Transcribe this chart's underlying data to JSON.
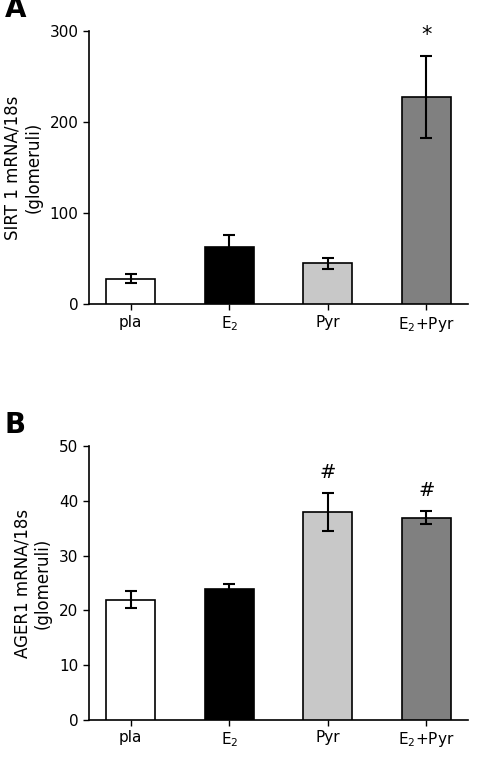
{
  "panel_A": {
    "label": "A",
    "categories": [
      "pla",
      "E$_2$",
      "Pyr",
      "E$_2$+Pyr"
    ],
    "values": [
      28,
      63,
      45,
      228
    ],
    "errors": [
      5,
      13,
      6,
      45
    ],
    "colors": [
      "#ffffff",
      "#000000",
      "#c8c8c8",
      "#808080"
    ],
    "edge_colors": [
      "#000000",
      "#000000",
      "#000000",
      "#000000"
    ],
    "ylabel": "SIRT 1 mRNA/18s\n(glomeruli)",
    "ylim": [
      0,
      300
    ],
    "yticks": [
      0,
      100,
      200,
      300
    ],
    "significance": [
      "",
      "",
      "",
      "*"
    ],
    "sig_fontsize": 15
  },
  "panel_B": {
    "label": "B",
    "categories": [
      "pla",
      "E$_2$",
      "Pyr",
      "E$_2$+Pyr"
    ],
    "values": [
      22,
      24,
      38,
      37
    ],
    "errors": [
      1.5,
      0.8,
      3.5,
      1.2
    ],
    "colors": [
      "#ffffff",
      "#000000",
      "#c8c8c8",
      "#808080"
    ],
    "edge_colors": [
      "#000000",
      "#000000",
      "#000000",
      "#000000"
    ],
    "ylabel": "AGER1 mRNA/18s\n(glomeruli)",
    "ylim": [
      0,
      50
    ],
    "yticks": [
      0,
      10,
      20,
      30,
      40,
      50
    ],
    "significance": [
      "",
      "",
      "#",
      "#"
    ],
    "sig_fontsize": 14
  },
  "bar_width": 0.5,
  "background_color": "#ffffff",
  "tick_fontsize": 11,
  "label_fontsize": 12,
  "panel_label_fontsize": 20
}
